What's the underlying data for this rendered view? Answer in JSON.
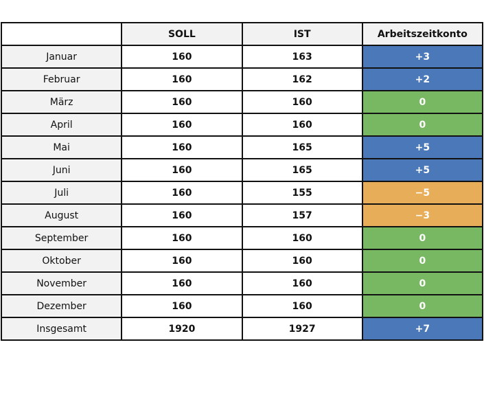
{
  "headers": [
    "",
    "SOLL",
    "IST",
    "Arbeitszeitkonto"
  ],
  "colors": {
    "positive": "#4a78b8",
    "zero": "#78b862",
    "negative": "#e8ad58",
    "label_bg": "#f2f2f2"
  },
  "rows": [
    {
      "month": "Januar",
      "soll": "160",
      "ist": "163",
      "konto": "+3",
      "status": "positive"
    },
    {
      "month": "Februar",
      "soll": "160",
      "ist": "162",
      "konto": "+2",
      "status": "positive"
    },
    {
      "month": "März",
      "soll": "160",
      "ist": "160",
      "konto": "0",
      "status": "zero"
    },
    {
      "month": "April",
      "soll": "160",
      "ist": "160",
      "konto": "0",
      "status": "zero"
    },
    {
      "month": "Mai",
      "soll": "160",
      "ist": "165",
      "konto": "+5",
      "status": "positive"
    },
    {
      "month": "Juni",
      "soll": "160",
      "ist": "165",
      "konto": "+5",
      "status": "positive"
    },
    {
      "month": "Juli",
      "soll": "160",
      "ist": "155",
      "konto": "−5",
      "status": "negative"
    },
    {
      "month": "August",
      "soll": "160",
      "ist": "157",
      "konto": "−3",
      "status": "negative"
    },
    {
      "month": "September",
      "soll": "160",
      "ist": "160",
      "konto": "0",
      "status": "zero"
    },
    {
      "month": "Oktober",
      "soll": "160",
      "ist": "160",
      "konto": "0",
      "status": "zero"
    },
    {
      "month": "November",
      "soll": "160",
      "ist": "160",
      "konto": "0",
      "status": "zero"
    },
    {
      "month": "Dezember",
      "soll": "160",
      "ist": "160",
      "konto": "0",
      "status": "zero"
    },
    {
      "month": "Insgesamt",
      "soll": "1920",
      "ist": "1927",
      "konto": "+7",
      "status": "positive"
    }
  ]
}
